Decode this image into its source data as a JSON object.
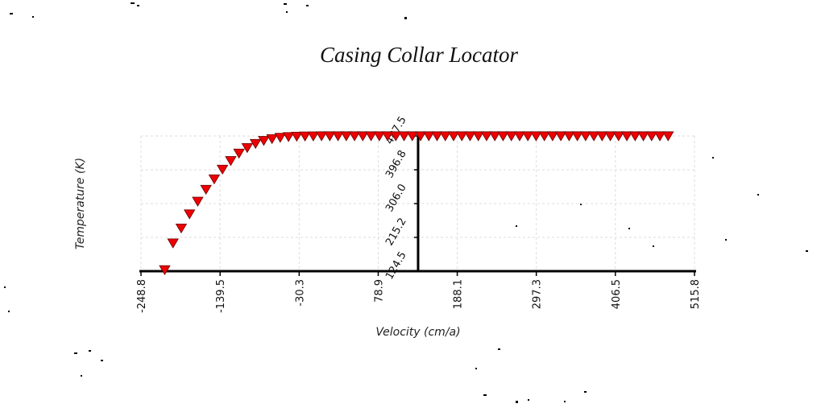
{
  "chart_data": {
    "type": "scatter",
    "title": "Casing Collar Locator",
    "xlabel": "Velocity (cm/a)",
    "ylabel": "Temperature (K)",
    "xlim": [
      -248.8,
      515.8
    ],
    "ylim": [
      124.5,
      487.5
    ],
    "x_ticks": [
      "-248.8",
      "-139.5",
      "-30.3",
      "78.9",
      "188.1",
      "297.3",
      "406.5",
      "515.8"
    ],
    "y_ticks": [
      "124.5",
      "215.2",
      "306.0",
      "396.8",
      "487.5"
    ],
    "x_tick_values": [
      -248.8,
      -139.5,
      -30.3,
      78.9,
      188.1,
      297.3,
      406.5,
      515.8
    ],
    "y_tick_values": [
      124.5,
      215.2,
      306.0,
      396.8,
      487.5
    ],
    "y_axis_at_x": 134.0,
    "marker": "triangle-down",
    "marker_color": "#ee0000",
    "grid": true,
    "legend": "none",
    "series": [
      {
        "values": [
          [
            -216.0,
            128.0
          ],
          [
            -204.6,
            200.0
          ],
          [
            -193.2,
            240.0
          ],
          [
            -181.8,
            278.0
          ],
          [
            -170.4,
            312.0
          ],
          [
            -159.0,
            344.0
          ],
          [
            -147.6,
            372.0
          ],
          [
            -136.2,
            398.0
          ],
          [
            -124.8,
            421.0
          ],
          [
            -113.4,
            441.0
          ],
          [
            -102.0,
            456.0
          ],
          [
            -90.6,
            467.0
          ],
          [
            -79.2,
            475.0
          ],
          [
            -67.8,
            480.0
          ],
          [
            -56.4,
            483.5
          ],
          [
            -45.0,
            485.5
          ],
          [
            -33.6,
            486.5
          ],
          [
            -22.2,
            487.0
          ],
          [
            -10.8,
            487.3
          ],
          [
            0.6,
            487.5
          ],
          [
            12.0,
            487.5
          ],
          [
            23.4,
            487.5
          ],
          [
            34.8,
            487.5
          ],
          [
            46.2,
            487.5
          ],
          [
            57.6,
            487.5
          ],
          [
            69.0,
            487.5
          ],
          [
            80.4,
            487.5
          ],
          [
            91.8,
            487.5
          ],
          [
            103.2,
            487.5
          ],
          [
            114.6,
            487.5
          ],
          [
            126.0,
            487.5
          ],
          [
            137.4,
            487.5
          ],
          [
            148.8,
            487.5
          ],
          [
            160.2,
            487.5
          ],
          [
            171.6,
            487.5
          ],
          [
            183.0,
            487.5
          ],
          [
            194.4,
            487.5
          ],
          [
            205.8,
            487.5
          ],
          [
            217.2,
            487.5
          ],
          [
            228.6,
            487.5
          ],
          [
            240.0,
            487.5
          ],
          [
            251.4,
            487.5
          ],
          [
            262.8,
            487.5
          ],
          [
            274.2,
            487.5
          ],
          [
            285.6,
            487.5
          ],
          [
            297.0,
            487.5
          ],
          [
            308.4,
            487.5
          ],
          [
            319.8,
            487.5
          ],
          [
            331.2,
            487.5
          ],
          [
            342.6,
            487.5
          ],
          [
            354.0,
            487.5
          ],
          [
            365.4,
            487.5
          ],
          [
            376.8,
            487.5
          ],
          [
            388.2,
            487.5
          ],
          [
            399.6,
            487.5
          ],
          [
            411.0,
            487.5
          ],
          [
            422.4,
            487.5
          ],
          [
            433.8,
            487.5
          ],
          [
            445.2,
            487.5
          ],
          [
            456.6,
            487.5
          ],
          [
            468.0,
            487.5
          ],
          [
            479.4,
            487.5
          ]
        ]
      }
    ]
  }
}
